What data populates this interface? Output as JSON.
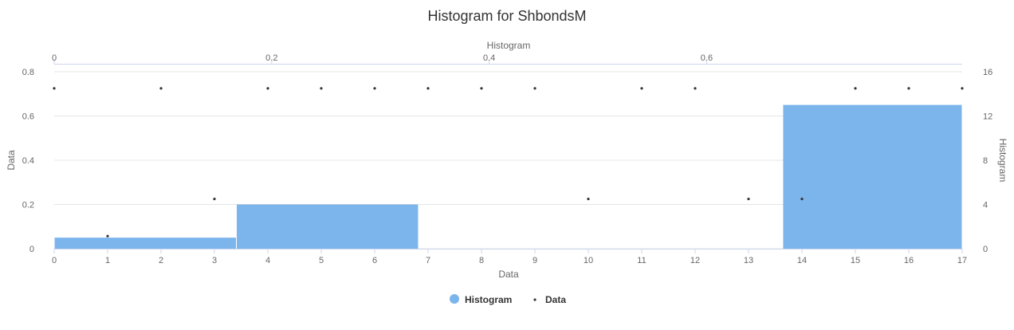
{
  "chart_data": {
    "type": "bar",
    "title": "Histogram for ShbondsM",
    "colors": {
      "histogram": "#7cb5ec",
      "data": "#333333",
      "grid": "#e6e6e6"
    },
    "axes": {
      "x_bottom": {
        "label": "Data",
        "range": [
          0,
          17
        ],
        "ticks": [
          "0",
          "1",
          "2",
          "3",
          "4",
          "5",
          "6",
          "7",
          "8",
          "9",
          "10",
          "11",
          "12",
          "13",
          "14",
          "15",
          "16",
          "17"
        ]
      },
      "x_top": {
        "label": "Histogram",
        "range": [
          0,
          0.835
        ],
        "ticks": [
          {
            "value": 0,
            "label": "0"
          },
          {
            "value": 0.2,
            "label": "0.2"
          },
          {
            "value": 0.4,
            "label": "0.4"
          },
          {
            "value": 0.6,
            "label": "0.6"
          }
        ]
      },
      "y_left": {
        "label": "Data",
        "range": [
          0,
          0.8
        ],
        "ticks": [
          {
            "value": 0,
            "label": "0"
          },
          {
            "value": 0.2,
            "label": "0.2"
          },
          {
            "value": 0.4,
            "label": "0.4"
          },
          {
            "value": 0.6,
            "label": "0.6"
          },
          {
            "value": 0.8,
            "label": "0.8"
          }
        ]
      },
      "y_right": {
        "label": "Histogram",
        "range": [
          0,
          16
        ],
        "ticks": [
          {
            "value": 0,
            "label": "0"
          },
          {
            "value": 4,
            "label": "4"
          },
          {
            "value": 8,
            "label": "8"
          },
          {
            "value": 12,
            "label": "12"
          },
          {
            "value": 16,
            "label": "16"
          }
        ]
      }
    },
    "series": [
      {
        "name": "Histogram",
        "type": "histogram",
        "bins": [
          {
            "x0": 0,
            "x1": 0.1675,
            "count": 1
          },
          {
            "x0": 0.1675,
            "x1": 0.335,
            "count": 4
          },
          {
            "x0": 0.67,
            "x1": 0.835,
            "count": 13
          }
        ]
      },
      {
        "name": "Data",
        "type": "scatter",
        "points": [
          {
            "x": 0,
            "y": 0.725
          },
          {
            "x": 1,
            "y": 0.057
          },
          {
            "x": 2,
            "y": 0.725
          },
          {
            "x": 3,
            "y": 0.225
          },
          {
            "x": 4,
            "y": 0.725
          },
          {
            "x": 5,
            "y": 0.725
          },
          {
            "x": 6,
            "y": 0.725
          },
          {
            "x": 7,
            "y": 0.725
          },
          {
            "x": 8,
            "y": 0.725
          },
          {
            "x": 9,
            "y": 0.725
          },
          {
            "x": 10,
            "y": 0.225
          },
          {
            "x": 11,
            "y": 0.725
          },
          {
            "x": 12,
            "y": 0.725
          },
          {
            "x": 13,
            "y": 0.225
          },
          {
            "x": 14,
            "y": 0.225
          },
          {
            "x": 15,
            "y": 0.725
          },
          {
            "x": 16,
            "y": 0.725
          },
          {
            "x": 17,
            "y": 0.725
          }
        ]
      }
    ],
    "legend": {
      "position": "bottom-center",
      "items": [
        {
          "label": "Histogram",
          "symbol": "circle"
        },
        {
          "label": "Data",
          "symbol": "dot"
        }
      ]
    },
    "grid": true
  }
}
